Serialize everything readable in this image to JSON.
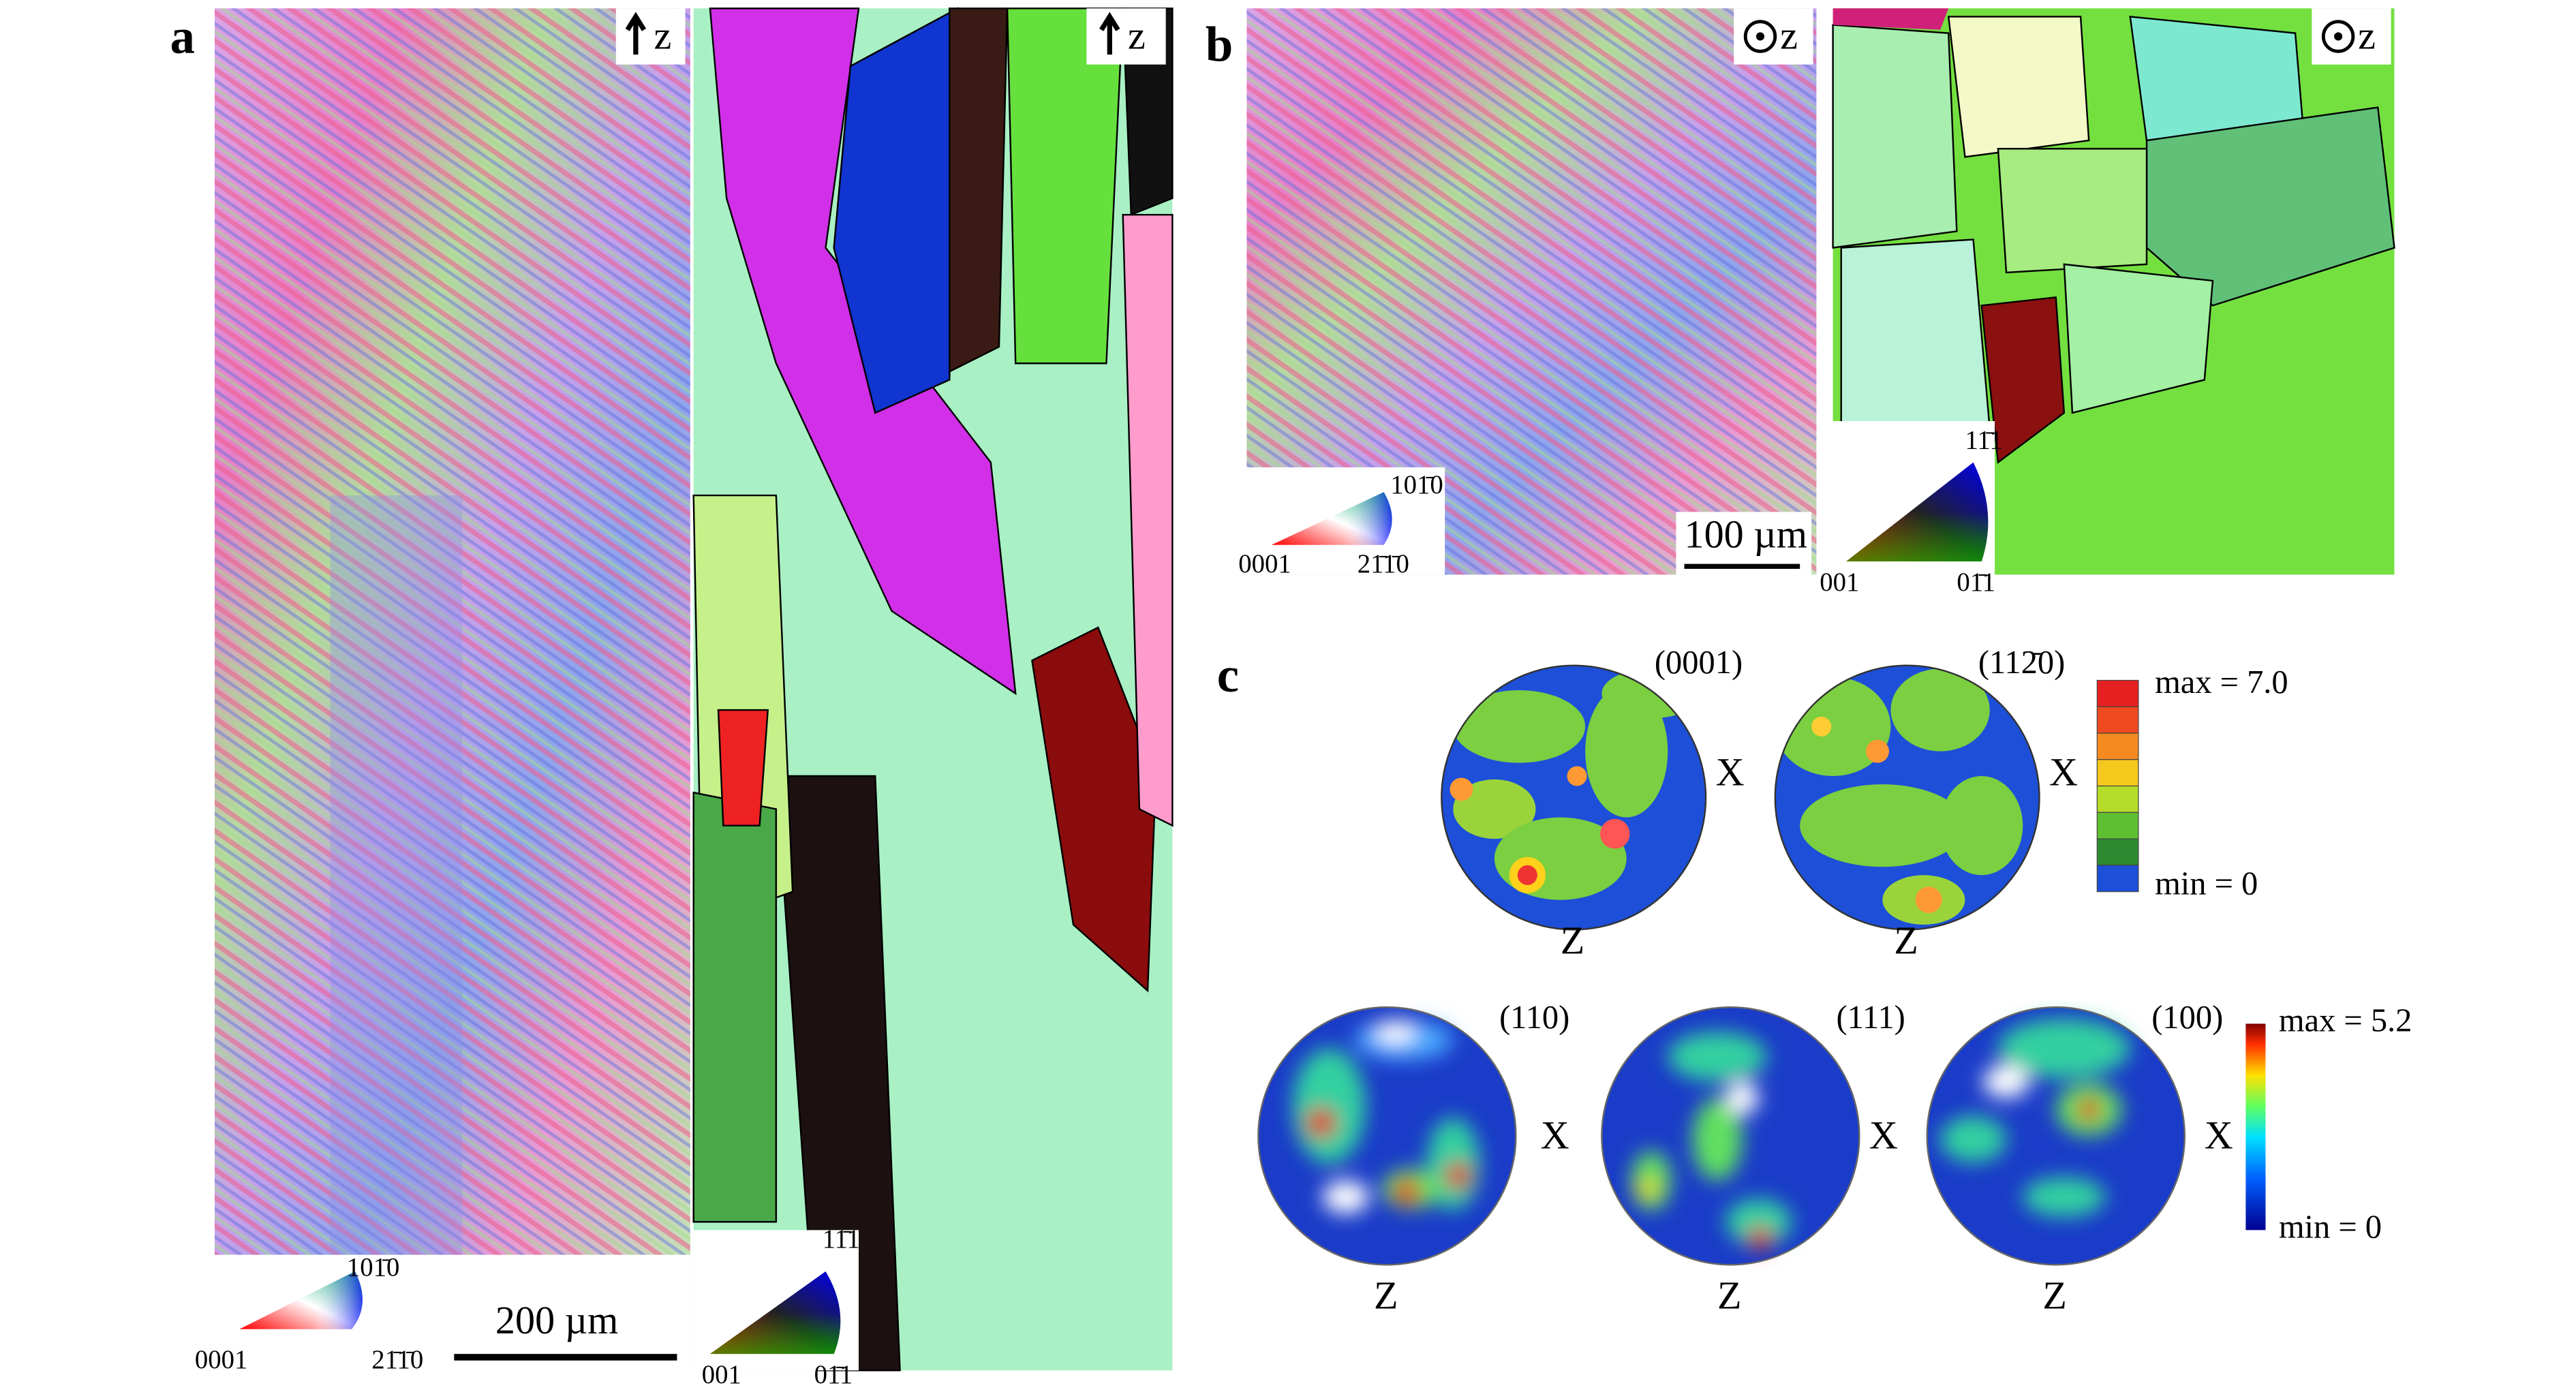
{
  "figure": {
    "panel_a": {
      "label": "a",
      "map_1": {
        "axis_label": "z"
      },
      "map_2": {
        "axis_label": "z"
      },
      "hcp_key": {
        "top": "101̄0",
        "left": "0001",
        "right": "21̄1̄0"
      },
      "scale_bar": "200 µm",
      "cubic_key": {
        "top": "11̄1",
        "left": "001",
        "right": "01̄1"
      }
    },
    "panel_b": {
      "label": "b",
      "map_1": {
        "axis_label": "z"
      },
      "map_2": {
        "axis_label": "z"
      },
      "hcp_key": {
        "top": "101̄0",
        "left": "0001",
        "right": "21̄1̄0"
      },
      "scale_bar": "100 µm",
      "cubic_key": {
        "top": "11̄1",
        "left": "001",
        "right": "01̄1"
      }
    },
    "panel_c": {
      "label": "c",
      "alpha_pole_figures": [
        {
          "plane": "(0001)",
          "x_label": "X",
          "z_label": "Z"
        },
        {
          "plane": "(112̄0)",
          "x_label": "X",
          "z_label": "Z"
        }
      ],
      "alpha_scale": {
        "max": "max = 7.0",
        "min": "min = 0"
      },
      "beta_pole_figures": [
        {
          "plane": "(110)",
          "x_label": "X",
          "z_label": "Z"
        },
        {
          "plane": "(111)",
          "x_label": "X",
          "z_label": "Z"
        },
        {
          "plane": "(100)",
          "x_label": "X",
          "z_label": "Z"
        }
      ],
      "beta_scale": {
        "max": "max = 5.2",
        "min": "min = 0"
      }
    }
  }
}
